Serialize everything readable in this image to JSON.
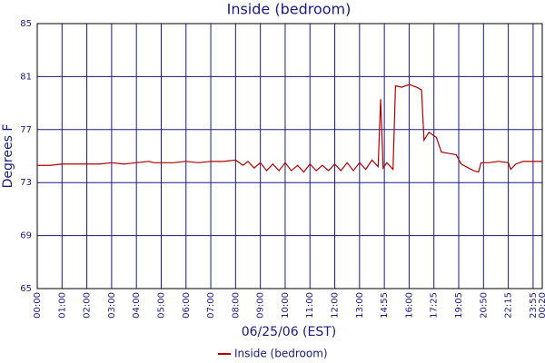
{
  "chart_data": {
    "type": "line",
    "title": "Inside (bedroom)",
    "x_label": "06/25/06 (EST)",
    "y_label": "Degrees F",
    "grid": true,
    "legend": "bottom",
    "xlim": [
      0,
      20.37
    ],
    "xticks": [
      {
        "value": 0,
        "label": "00:00"
      },
      {
        "value": 1,
        "label": "01:00"
      },
      {
        "value": 2,
        "label": "02:00"
      },
      {
        "value": 3,
        "label": "03:00"
      },
      {
        "value": 4,
        "label": "04:00"
      },
      {
        "value": 5,
        "label": "05:00"
      },
      {
        "value": 6,
        "label": "06:00"
      },
      {
        "value": 7,
        "label": "07:00"
      },
      {
        "value": 8,
        "label": "08:00"
      },
      {
        "value": 9,
        "label": "09:00"
      },
      {
        "value": 10,
        "label": "10:00"
      },
      {
        "value": 11,
        "label": "11:00"
      },
      {
        "value": 12,
        "label": "12:00"
      },
      {
        "value": 13,
        "label": "13:00"
      },
      {
        "value": 14,
        "label": "14:55"
      },
      {
        "value": 15,
        "label": "16:00"
      },
      {
        "value": 16,
        "label": "17:25"
      },
      {
        "value": 17,
        "label": "19:05"
      },
      {
        "value": 18,
        "label": "20:50"
      },
      {
        "value": 19,
        "label": "22:15"
      },
      {
        "value": 20,
        "label": "23:55"
      },
      {
        "value": 20.37,
        "label": "00:20"
      }
    ],
    "ylim": [
      65,
      85
    ],
    "yticks": [
      65,
      69,
      73,
      77,
      81,
      85
    ],
    "x": [
      0,
      0.5,
      1,
      1.5,
      2,
      2.5,
      3,
      3.5,
      4,
      4.5,
      4.7,
      5,
      5.5,
      6,
      6.5,
      7,
      7.5,
      8,
      8.3,
      8.5,
      8.75,
      9,
      9.25,
      9.5,
      9.75,
      10,
      10.25,
      10.5,
      10.75,
      11,
      11.25,
      11.5,
      11.75,
      12,
      12.25,
      12.5,
      12.75,
      13,
      13.25,
      13.5,
      13.75,
      13.85,
      13.95,
      14.1,
      14.35,
      14.45,
      14.7,
      15,
      15.3,
      15.5,
      15.6,
      15.8,
      16.1,
      16.3,
      16.6,
      16.9,
      17.1,
      17.3,
      17.6,
      17.8,
      17.9,
      18.2,
      18.6,
      19,
      19.1,
      19.3,
      19.6,
      20,
      20.37
    ],
    "series": [
      {
        "name": "Inside (bedroom)",
        "color": "#b00000",
        "values": [
          74.3,
          74.3,
          74.4,
          74.4,
          74.4,
          74.4,
          74.5,
          74.4,
          74.5,
          74.6,
          74.5,
          74.5,
          74.5,
          74.6,
          74.5,
          74.6,
          74.6,
          74.7,
          74.3,
          74.6,
          74.1,
          74.5,
          73.9,
          74.4,
          73.9,
          74.5,
          73.9,
          74.3,
          73.8,
          74.4,
          73.9,
          74.3,
          73.9,
          74.4,
          73.9,
          74.5,
          73.9,
          74.5,
          74.0,
          74.7,
          74.2,
          79.3,
          74.1,
          74.5,
          74.0,
          80.3,
          80.2,
          80.4,
          80.2,
          80.0,
          76.2,
          76.8,
          76.4,
          75.3,
          75.2,
          75.1,
          74.4,
          74.2,
          73.9,
          73.8,
          74.5,
          74.5,
          74.6,
          74.5,
          74.0,
          74.4,
          74.6,
          74.6,
          74.6
        ]
      }
    ]
  }
}
